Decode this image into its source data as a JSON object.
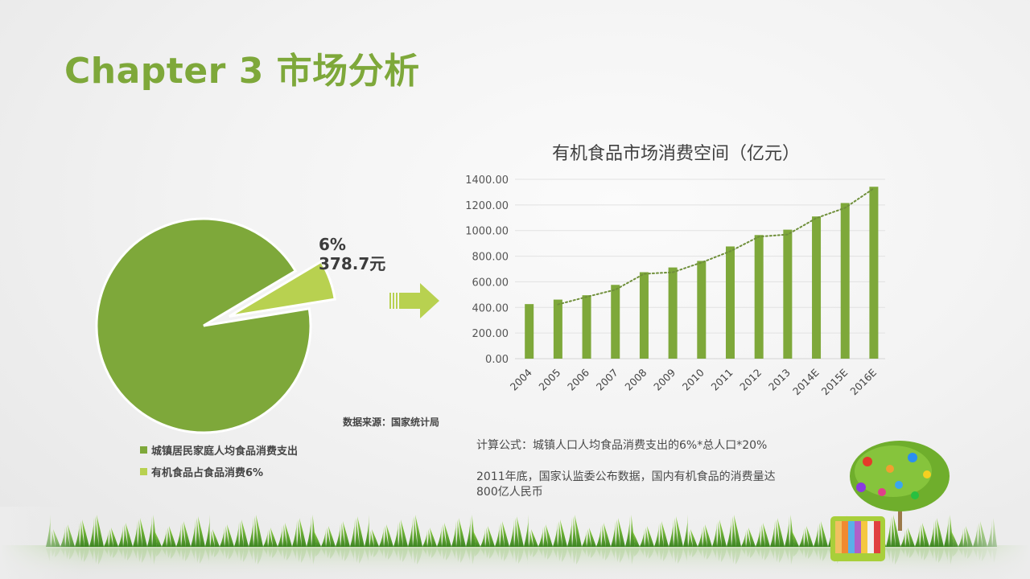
{
  "slide": {
    "title": "Chapter 3 市场分析",
    "accent_color": "#7ea83a",
    "light_accent_color": "#b8d150"
  },
  "pie": {
    "label_percent": "6%",
    "label_value": "378.7元",
    "source": "数据来源：国家统计局",
    "legend": [
      {
        "label": "城镇居民家庭人均食品消费支出",
        "color": "#7ea83a"
      },
      {
        "label": "有机食品占食品消费6%",
        "color": "#b8d150"
      }
    ]
  },
  "arrow": {
    "icon": "right-arrow-icon",
    "color": "#b8d150"
  },
  "notes": {
    "formula": "计算公式：城镇人口人均食品消费支出的6%*总人口*20%",
    "fact_line1": "2011年底，国家认监委公布数据，国内有机食品的消费量达",
    "fact_line2": "800亿人民币"
  },
  "chart_data": [
    {
      "type": "pie",
      "title": "",
      "categories": [
        "城镇居民家庭人均食品消费支出",
        "有机食品占食品消费6%"
      ],
      "values": [
        94,
        6
      ],
      "annotations": [
        "6%",
        "378.7元"
      ],
      "exploded": [
        false,
        true
      ],
      "colors": [
        "#7ea83a",
        "#b8d150"
      ],
      "legend_position": "bottom"
    },
    {
      "type": "bar",
      "title": "有机食品市场消费空间（亿元）",
      "categories": [
        "2004",
        "2005",
        "2006",
        "2007",
        "2008",
        "2009",
        "2010",
        "2011",
        "2012",
        "2013",
        "2014E",
        "2015E",
        "2016E"
      ],
      "values": [
        426,
        461,
        495,
        576,
        675,
        712,
        763,
        876,
        965,
        1007,
        1110,
        1215,
        1342
      ],
      "yticks": [
        "0.00",
        "200.00",
        "400.00",
        "600.00",
        "800.00",
        "1000.00",
        "1200.00",
        "1400.00"
      ],
      "ylim": [
        0,
        1400
      ],
      "xlabel": "",
      "ylabel": "",
      "grid": true,
      "trendline": "dotted polynomial",
      "bar_color": "#7ea83a",
      "legend_position": "none"
    }
  ]
}
